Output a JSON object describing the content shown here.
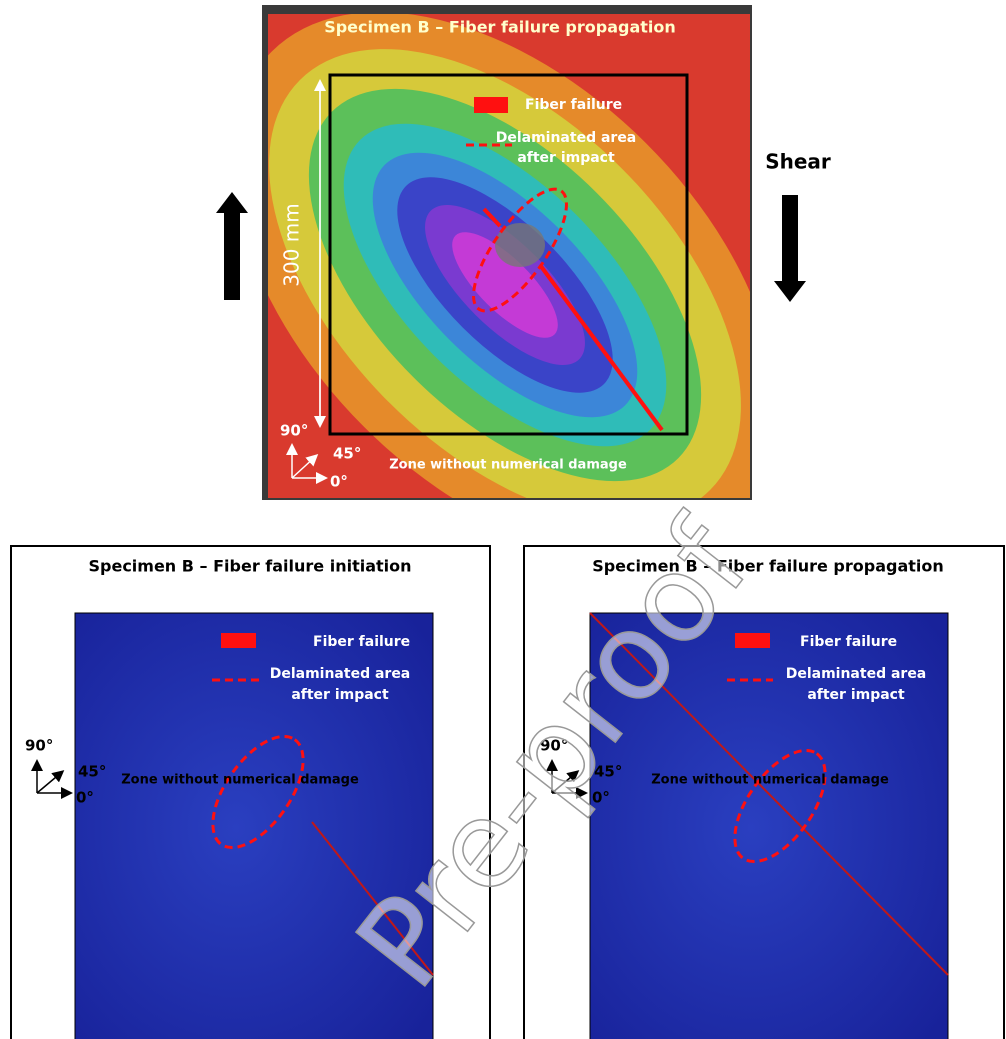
{
  "top_panel": {
    "title": "Specimen B – Fiber failure propagation",
    "legend": {
      "fiber_failure": "Fiber failure",
      "delaminated": [
        "Delaminated area",
        "after impact"
      ]
    },
    "shear": "Shear",
    "size": "300 mm",
    "axes": {
      "a90": "90°",
      "a45": "45°",
      "a0": "0°"
    },
    "zone": "Zone without numerical damage"
  },
  "bottom_panels": [
    {
      "title": "Specimen B – Fiber failure initiation",
      "legend": {
        "fiber_failure": "Fiber failure",
        "delaminated": [
          "Delaminated area",
          "after impact"
        ]
      },
      "axes": {
        "a90": "90°",
        "a45": "45°",
        "a0": "0°"
      },
      "zone": "Zone without numerical damage"
    },
    {
      "title": "Specimen B – Fiber failure propagation",
      "legend": {
        "fiber_failure": "Fiber failure",
        "delaminated": [
          "Delaminated area",
          "after impact"
        ]
      },
      "axes": {
        "a90": "90°",
        "a45": "45°",
        "a0": "0°"
      },
      "zone": "Zone without numerical damage"
    }
  ],
  "watermark": "Pre-proof"
}
